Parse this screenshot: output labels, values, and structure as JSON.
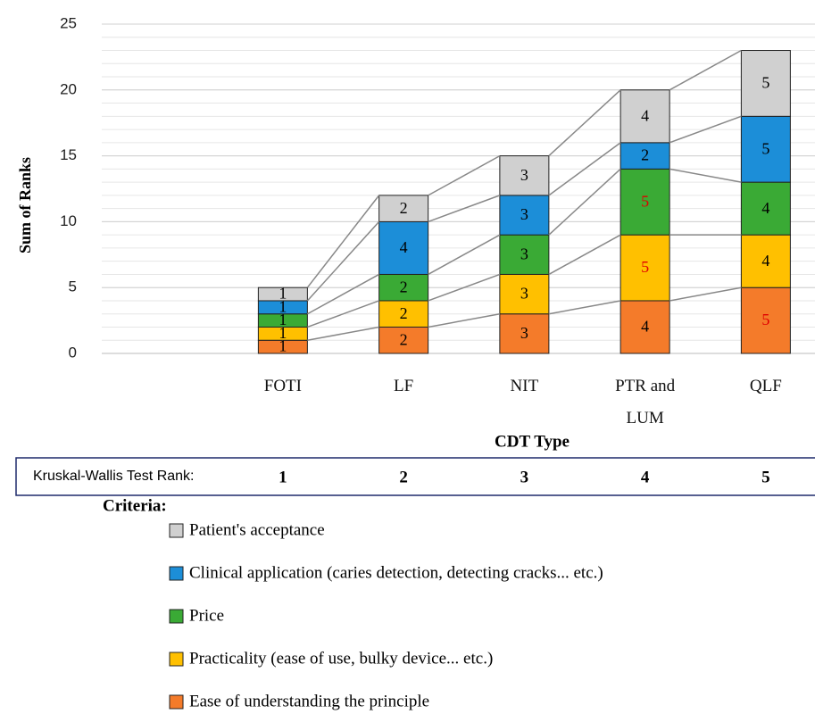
{
  "chart_data": {
    "type": "stacked_bar",
    "ylabel": "Sum of Ranks",
    "xlabel": "CDT Type",
    "categories": [
      null,
      "FOTI",
      "LF",
      "NIT",
      "PTR and LUM",
      "QLF"
    ],
    "series": [
      {
        "name": "Ease of understanding the principle",
        "color": "#f47b2a",
        "values": [
          null,
          1,
          2,
          3,
          4,
          5
        ],
        "label_colors": [
          null,
          "#000000",
          "#000000",
          "#000000",
          "#000000",
          "#e00000"
        ]
      },
      {
        "name": "Practicality (ease of use, bulky device... etc.)",
        "color": "#ffc000",
        "values": [
          null,
          1,
          2,
          3,
          5,
          4
        ],
        "label_colors": [
          null,
          "#000000",
          "#000000",
          "#000000",
          "#e00000",
          "#000000"
        ]
      },
      {
        "name": "Price",
        "color": "#3aaa35",
        "values": [
          null,
          1,
          2,
          3,
          5,
          4
        ],
        "label_colors": [
          null,
          "#000000",
          "#000000",
          "#000000",
          "#e00000",
          "#000000"
        ]
      },
      {
        "name": "Clinical application (caries detection, detecting cracks... etc.)",
        "color": "#1c8ed8",
        "values": [
          null,
          1,
          4,
          3,
          2,
          5
        ],
        "label_colors": [
          null,
          "#000000",
          "#000000",
          "#000000",
          "#000000",
          "#000000"
        ]
      },
      {
        "name": "Patient's acceptance",
        "color": "#d0d0d0",
        "values": [
          null,
          1,
          2,
          3,
          4,
          5
        ],
        "label_colors": [
          null,
          "#000000",
          "#000000",
          "#000000",
          "#000000",
          "#000000"
        ]
      }
    ],
    "ylim": [
      0,
      25
    ],
    "yticks": [
      0,
      5,
      10,
      15,
      20,
      25
    ],
    "grid": true,
    "minor_grid_step": 1,
    "legend_title": "Criteria:",
    "kruskal_wallis": {
      "label": "Kruskal-Wallis Test Rank:",
      "ranks": [
        1,
        2,
        3,
        4,
        5
      ]
    }
  }
}
